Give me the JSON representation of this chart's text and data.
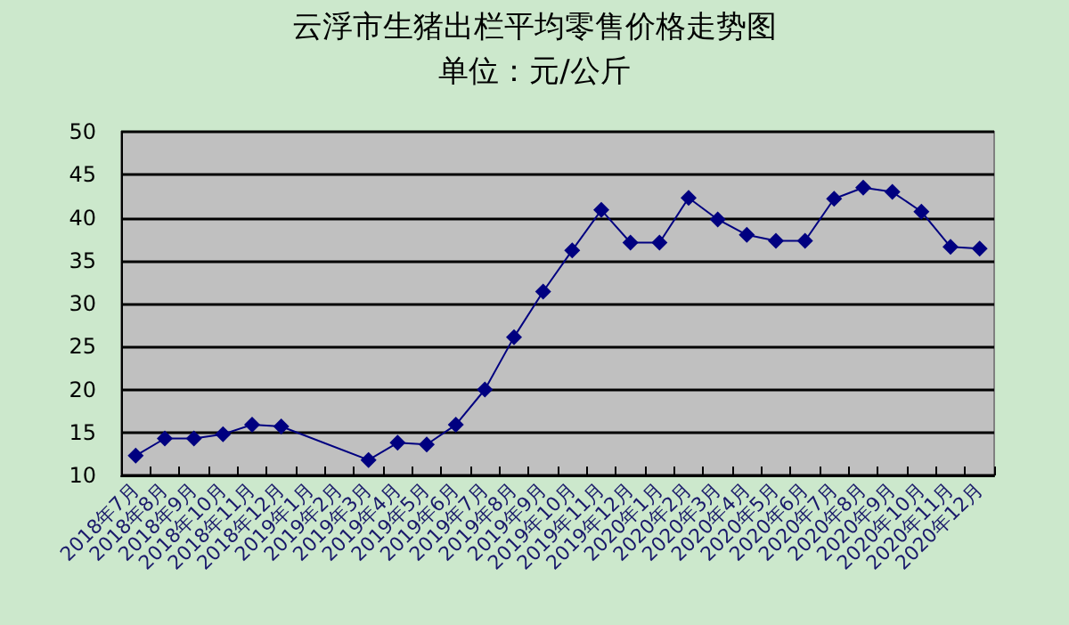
{
  "chart_data": {
    "type": "line",
    "title": "云浮市生猪出栏平均零售价格走势图",
    "subtitle": "单位：元/公斤",
    "categories": [
      "2018年7月",
      "2018年8月",
      "2018年9月",
      "2018年10月",
      "2018年11月",
      "2018年12月",
      "2019年1月",
      "2019年2月",
      "2019年3月",
      "2019年4月",
      "2019年5月",
      "2019年6月",
      "2019年7月",
      "2019年8月",
      "2019年9月",
      "2019年10月",
      "2019年11月",
      "2019年12月",
      "2020年1月",
      "2020年2月",
      "2020年3月",
      "2020年4月",
      "2020年5月",
      "2020年6月",
      "2020年7月",
      "2020年8月",
      "2020年9月",
      "2020年10月",
      "2020年11月",
      "2020年12月"
    ],
    "series": [
      {
        "color": "#000080",
        "values": [
          12.3,
          14.3,
          14.3,
          14.8,
          15.9,
          15.7,
          null,
          null,
          11.8,
          13.8,
          13.6,
          15.9,
          20.0,
          26.1,
          31.4,
          36.2,
          40.9,
          37.1,
          37.1,
          42.3,
          39.8,
          38.0,
          37.3,
          37.3,
          42.2,
          43.5,
          43.0,
          40.7,
          36.6,
          36.4
        ]
      }
    ],
    "ylim": [
      10,
      50
    ],
    "yticks": [
      10,
      15,
      20,
      25,
      30,
      35,
      40,
      45,
      50
    ],
    "grid": "y",
    "marker": "diamond",
    "line_style": "solid"
  }
}
